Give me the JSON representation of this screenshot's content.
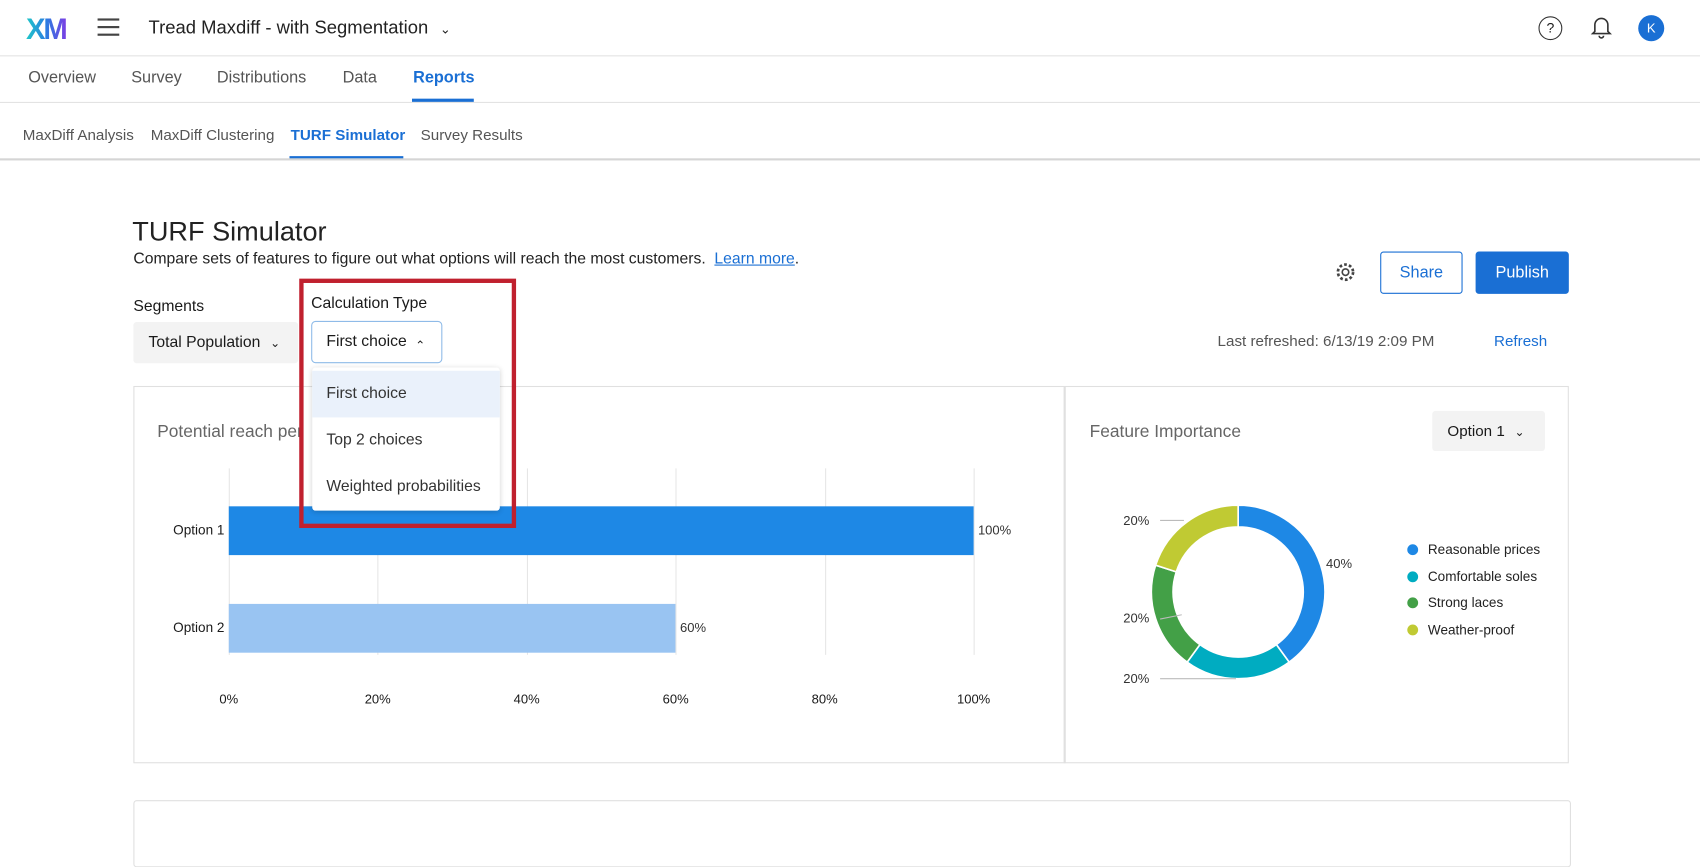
{
  "header": {
    "logo": "XM",
    "title": "Tread Maxdiff - with Segmentation",
    "avatar": "K"
  },
  "nav": {
    "tabs": [
      {
        "label": "Overview"
      },
      {
        "label": "Survey"
      },
      {
        "label": "Distributions"
      },
      {
        "label": "Data"
      },
      {
        "label": "Reports",
        "active": true
      }
    ]
  },
  "subnav": {
    "tabs": [
      {
        "label": "MaxDiff Analysis"
      },
      {
        "label": "MaxDiff Clustering"
      },
      {
        "label": "TURF Simulator",
        "active": true
      },
      {
        "label": "Survey Results"
      }
    ]
  },
  "page": {
    "title": "TURF Simulator",
    "description": "Compare sets of features to figure out what options will reach the most customers.",
    "learn_more": "Learn more",
    "share": "Share",
    "publish": "Publish",
    "last_refreshed": "Last refreshed: 6/13/19 2:09 PM",
    "refresh": "Refresh"
  },
  "segments": {
    "label": "Segments",
    "value": "Total Population"
  },
  "calculation": {
    "label": "Calculation Type",
    "value": "First choice",
    "options": [
      "First choice",
      "Top 2 choices",
      "Weighted probabilities"
    ],
    "highlighted": "First choice",
    "highlight_color": "#c0202e"
  },
  "chart_data": [
    {
      "type": "bar",
      "title": "Potential reach per",
      "orientation": "horizontal",
      "categories": [
        "Option 1",
        "Option 2"
      ],
      "values": [
        100,
        60
      ],
      "data_labels": [
        "100%",
        "60%"
      ],
      "colors": [
        "#1e88e5",
        "#99c4f2"
      ],
      "xlim": [
        0,
        100
      ],
      "xticks": [
        "0%",
        "20%",
        "40%",
        "60%",
        "80%",
        "100%"
      ],
      "grid": true
    },
    {
      "type": "pie",
      "donut": true,
      "title": "Feature Importance",
      "selector": "Option 1",
      "labels": [
        "Reasonable prices",
        "Comfortable soles",
        "Strong laces",
        "Weather-proof"
      ],
      "values": [
        40,
        20,
        20,
        20
      ],
      "data_labels": [
        "40%",
        "20%",
        "20%",
        "20%"
      ],
      "colors": [
        "#1e88e5",
        "#00acc1",
        "#43a047",
        "#c0ca33"
      ],
      "legend": "right"
    }
  ]
}
